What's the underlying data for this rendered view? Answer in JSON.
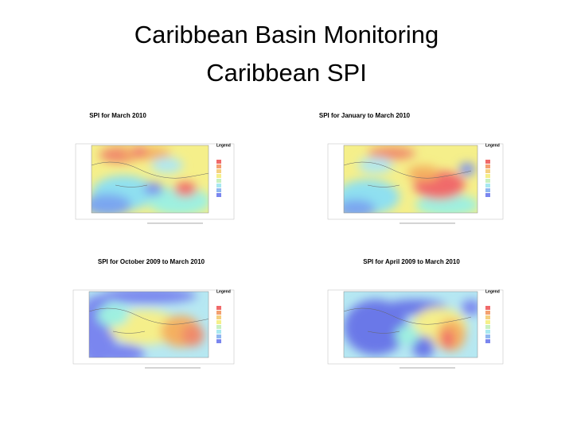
{
  "header": {
    "title_line1": "Caribbean Basin Monitoring",
    "title_line2": "Caribbean SPI"
  },
  "panels": [
    {
      "title": "SPI for  March 2010",
      "legend": "Legend"
    },
    {
      "title": "SPI for  January to  March 2010",
      "legend": "Legend"
    },
    {
      "title": "SPI  for October 2009 to  March 2010",
      "legend": "Legend"
    },
    {
      "title": "SPI for  April 2009 to  March 2010",
      "legend": "Legend"
    }
  ]
}
